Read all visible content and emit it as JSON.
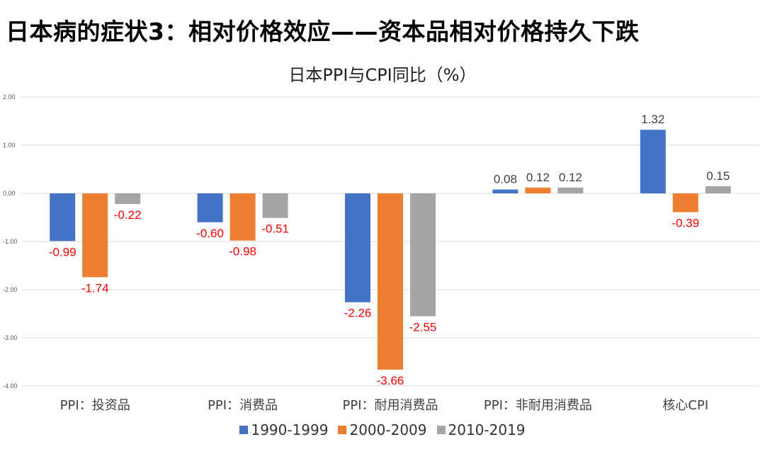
{
  "heading": "日本病的症状3：相对价格效应——资本品相对价格持久下跌",
  "chart_data": {
    "type": "bar",
    "title": "日本PPI与CPI同比（%）",
    "categories": [
      "PPI：投资品",
      "PPI：消费品",
      "PPI：耐用消费品",
      "PPI：非耐用消费品",
      "核心CPI"
    ],
    "series": [
      {
        "name": "1990-1999",
        "color": "#4472C4",
        "values": [
          -0.99,
          -0.6,
          -2.26,
          0.08,
          1.32
        ]
      },
      {
        "name": "2000-2009",
        "color": "#ED7D31",
        "values": [
          -1.74,
          -0.98,
          -3.66,
          0.12,
          -0.39
        ]
      },
      {
        "name": "2010-2019",
        "color": "#A5A5A5",
        "values": [
          -0.22,
          -0.51,
          -2.55,
          0.12,
          0.15
        ]
      }
    ],
    "ylim": [
      -4,
      2
    ],
    "yticks": [
      "2.00",
      "1.00",
      "0.00",
      "-1.00",
      "-2.00",
      "-3.00",
      "-4.00"
    ],
    "grid": true,
    "legend_position": "bottom",
    "label_colors": {
      "positive": "#404040",
      "negative": "#FF0000"
    }
  }
}
